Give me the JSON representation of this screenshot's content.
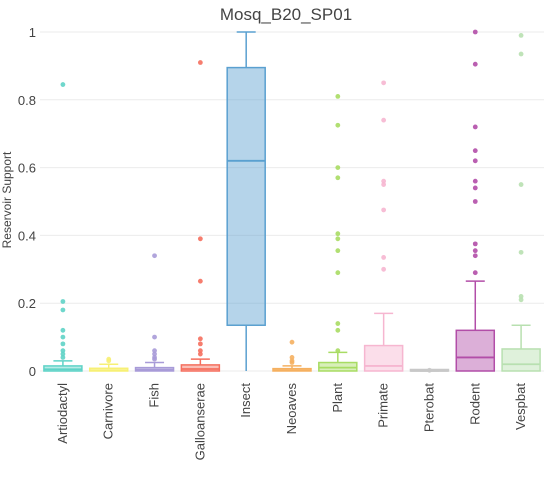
{
  "chart_data": {
    "type": "box",
    "title": "Mosq_B20_SP01",
    "xlabel": "",
    "ylabel": "Reservoir Support",
    "ylim": [
      0,
      1
    ],
    "yticks": [
      "0",
      "0.2",
      "0.4",
      "0.6",
      "0.8",
      "1"
    ],
    "grid": true,
    "legend": "none",
    "categories": [
      "Artiodactyl",
      "Carnivore",
      "Fish",
      "Galloanserae",
      "Insect",
      "Neoaves",
      "Plant",
      "Primate",
      "Pterobat",
      "Rodent",
      "Vespbat"
    ],
    "boxes": [
      {
        "category": "Artiodactyl",
        "color": "#5fd3c7",
        "low": 0,
        "q1": 0,
        "median": 0.005,
        "q3": 0.015,
        "high": 0.03,
        "outliers": [
          0.845,
          0.205,
          0.18,
          0.12,
          0.1,
          0.08,
          0.06,
          0.05,
          0.04
        ]
      },
      {
        "category": "Carnivore",
        "color": "#f7f075",
        "low": 0,
        "q1": 0,
        "median": 0.002,
        "q3": 0.008,
        "high": 0.02,
        "outliers": [
          0.035,
          0.03
        ]
      },
      {
        "category": "Fish",
        "color": "#a89bd8",
        "low": 0,
        "q1": 0,
        "median": 0.004,
        "q3": 0.01,
        "high": 0.025,
        "outliers": [
          0.34,
          0.1,
          0.06,
          0.05,
          0.04,
          0.035
        ]
      },
      {
        "category": "Galloanserae",
        "color": "#f56f5e",
        "low": 0,
        "q1": 0,
        "median": 0.006,
        "q3": 0.018,
        "high": 0.035,
        "outliers": [
          0.91,
          0.39,
          0.265,
          0.095,
          0.08,
          0.06,
          0.05
        ]
      },
      {
        "category": "Insect",
        "color": "#5aa0d0",
        "low": 0,
        "q1": 0.135,
        "median": 0.62,
        "q3": 0.895,
        "high": 1.0,
        "outliers": []
      },
      {
        "category": "Neoaves",
        "color": "#f5b060",
        "low": 0,
        "q1": 0,
        "median": 0.002,
        "q3": 0.007,
        "high": 0.015,
        "outliers": [
          0.085,
          0.04,
          0.03,
          0.025
        ]
      },
      {
        "category": "Plant",
        "color": "#a8dc63",
        "low": 0,
        "q1": 0,
        "median": 0.01,
        "q3": 0.025,
        "high": 0.055,
        "outliers": [
          0.81,
          0.725,
          0.6,
          0.57,
          0.405,
          0.39,
          0.355,
          0.29,
          0.14,
          0.12,
          0.06
        ]
      },
      {
        "category": "Primate",
        "color": "#f6b6d0",
        "low": 0,
        "q1": 0,
        "median": 0.015,
        "q3": 0.075,
        "high": 0.17,
        "outliers": [
          0.85,
          0.74,
          0.56,
          0.55,
          0.475,
          0.335,
          0.3
        ]
      },
      {
        "category": "Pterobat",
        "color": "#c8c8c8",
        "low": 0,
        "q1": 0,
        "median": 0,
        "q3": 0,
        "high": 0,
        "outliers": [
          0.002
        ]
      },
      {
        "category": "Rodent",
        "color": "#b24ea8",
        "low": 0,
        "q1": 0,
        "median": 0.04,
        "q3": 0.12,
        "high": 0.265,
        "outliers": [
          1.0,
          0.905,
          0.72,
          0.65,
          0.62,
          0.56,
          0.54,
          0.5,
          0.375,
          0.355,
          0.34,
          0.29
        ]
      },
      {
        "category": "Vespbat",
        "color": "#b8e0b0",
        "low": 0,
        "q1": 0,
        "median": 0.02,
        "q3": 0.065,
        "high": 0.135,
        "outliers": [
          0.99,
          0.935,
          0.55,
          0.35,
          0.22,
          0.21
        ]
      }
    ]
  }
}
